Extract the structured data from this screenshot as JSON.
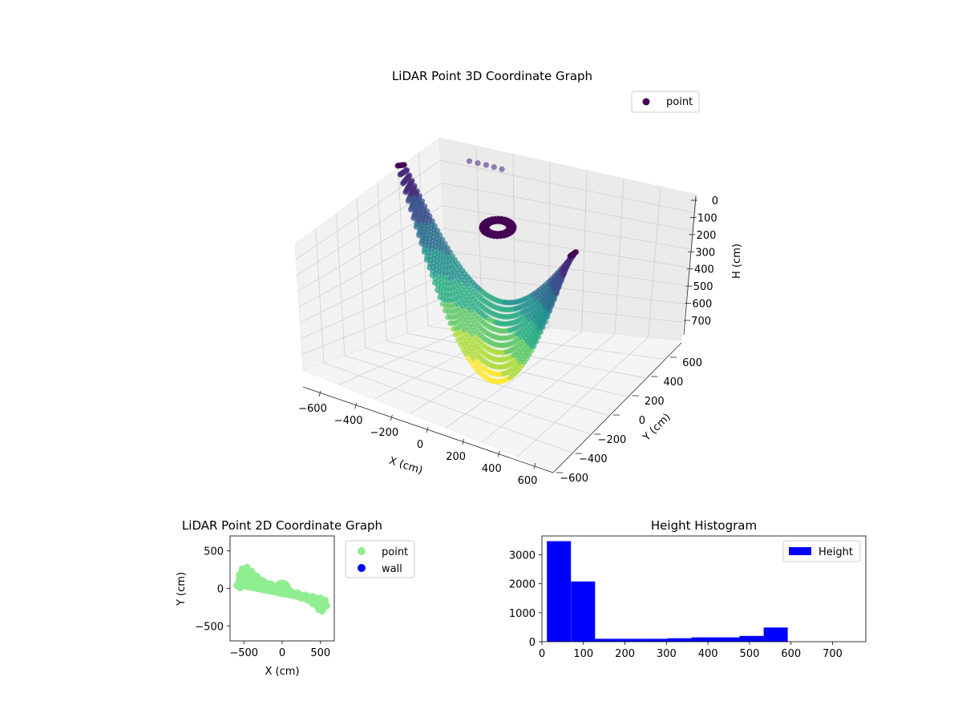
{
  "chart_data": [
    {
      "type": "scatter3d",
      "title": "LiDAR Point 3D Coordinate Graph",
      "xlabel": "X (cm)",
      "ylabel": "Y (cm)",
      "zlabel": "H (cm)",
      "xticks": [
        "−600",
        "−400",
        "−200",
        "0",
        "200",
        "400",
        "600"
      ],
      "yticks": [
        "600",
        "400",
        "200",
        "0",
        "−200",
        "−400",
        "−600"
      ],
      "zticks": [
        "0",
        "100",
        "200",
        "300",
        "400",
        "500",
        "600",
        "700"
      ],
      "xlim": [
        -650,
        650
      ],
      "ylim": [
        -650,
        650
      ],
      "zlim": [
        0,
        780
      ],
      "z_inverted": true,
      "colormap": "viridis",
      "legend": {
        "label": "point",
        "placement": "top-right",
        "marker_color": "#440154"
      },
      "series": [
        {
          "name": "point",
          "description_points": [
            {
              "x": -560,
              "y": 150,
              "h": 50
            },
            {
              "x": -500,
              "y": 140,
              "h": 250
            },
            {
              "x": -420,
              "y": 120,
              "h": 450
            },
            {
              "x": -300,
              "y": 90,
              "h": 620
            },
            {
              "x": -150,
              "y": 50,
              "h": 720
            },
            {
              "x": 0,
              "y": 0,
              "h": 760
            },
            {
              "x": 150,
              "y": -60,
              "h": 720
            },
            {
              "x": 300,
              "y": -120,
              "h": 600
            },
            {
              "x": 420,
              "y": -170,
              "h": 440
            },
            {
              "x": 520,
              "y": -210,
              "h": 280
            },
            {
              "x": 600,
              "y": -240,
              "h": 150
            },
            {
              "x": -200,
              "y": 280,
              "h": 20
            },
            {
              "x": 0,
              "y": 0,
              "h": 40
            }
          ]
        }
      ]
    },
    {
      "type": "scatter",
      "title": "LiDAR Point 2D Coordinate Graph",
      "xlabel": "X (cm)",
      "ylabel": "Y (cm)",
      "xlim": [
        -680,
        680
      ],
      "ylim": [
        -700,
        700
      ],
      "xticks": [
        "−500",
        "0",
        "500"
      ],
      "yticks": [
        "500",
        "0",
        "−500"
      ],
      "legend": [
        {
          "label": "point",
          "color": "#90ee90"
        },
        {
          "label": "wall",
          "color": "#0000ff"
        }
      ],
      "series": [
        {
          "name": "point",
          "color": "#90ee90",
          "values": [
            {
              "x": -590,
              "y": 40
            },
            {
              "x": -560,
              "y": 180
            },
            {
              "x": -520,
              "y": 260
            },
            {
              "x": -460,
              "y": 280
            },
            {
              "x": -400,
              "y": 230
            },
            {
              "x": -330,
              "y": 160
            },
            {
              "x": -250,
              "y": 100
            },
            {
              "x": -150,
              "y": 60
            },
            {
              "x": -60,
              "y": 20
            },
            {
              "x": 0,
              "y": 0
            },
            {
              "x": 100,
              "y": -30
            },
            {
              "x": 200,
              "y": -60
            },
            {
              "x": 300,
              "y": -90
            },
            {
              "x": 400,
              "y": -110
            },
            {
              "x": 500,
              "y": -130
            },
            {
              "x": 560,
              "y": -160
            },
            {
              "x": 580,
              "y": -230
            },
            {
              "x": 520,
              "y": -300
            },
            {
              "x": 480,
              "y": -280
            },
            {
              "x": 400,
              "y": -200
            },
            {
              "x": 250,
              "y": -130
            },
            {
              "x": -300,
              "y": 40
            },
            {
              "x": -450,
              "y": 50
            },
            {
              "x": -550,
              "y": 10
            }
          ]
        },
        {
          "name": "wall",
          "color": "#0000ff",
          "values": []
        }
      ]
    },
    {
      "type": "bar",
      "title": "Height Histogram",
      "legend": {
        "label": "Height",
        "color": "#0000ff",
        "placement": "top-right"
      },
      "xlim": [
        0,
        780
      ],
      "ylim": [
        0,
        3650
      ],
      "xticks": [
        "0",
        "100",
        "200",
        "300",
        "400",
        "500",
        "600",
        "700"
      ],
      "yticks": [
        "0",
        "1000",
        "2000",
        "3000"
      ],
      "bins": [
        {
          "x0": 12,
          "x1": 70,
          "count": 3470
        },
        {
          "x0": 70,
          "x1": 128,
          "count": 2080
        },
        {
          "x0": 128,
          "x1": 186,
          "count": 100
        },
        {
          "x0": 186,
          "x1": 244,
          "count": 100
        },
        {
          "x0": 244,
          "x1": 302,
          "count": 100
        },
        {
          "x0": 302,
          "x1": 360,
          "count": 120
        },
        {
          "x0": 360,
          "x1": 418,
          "count": 150
        },
        {
          "x0": 418,
          "x1": 476,
          "count": 150
        },
        {
          "x0": 476,
          "x1": 534,
          "count": 200
        },
        {
          "x0": 534,
          "x1": 592,
          "count": 490
        }
      ]
    }
  ]
}
